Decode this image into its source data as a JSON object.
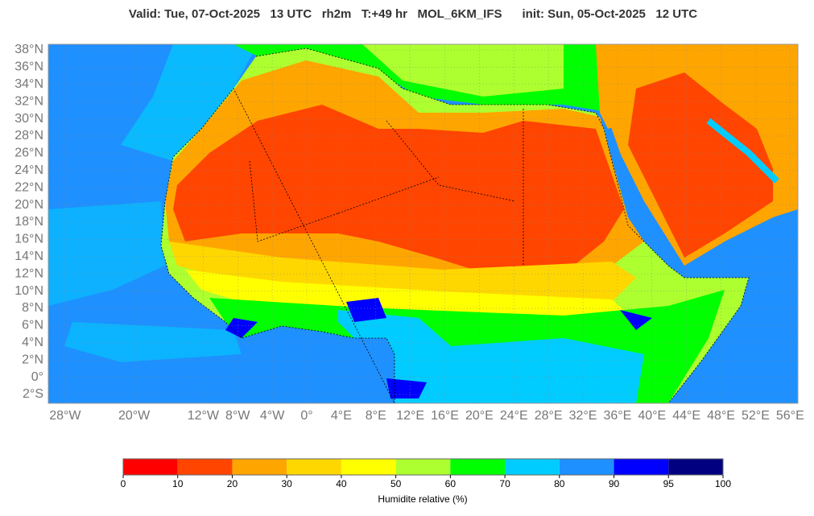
{
  "title": "Valid: Tue, 07-Oct-2025   13 UTC   rh2m   T:+49 hr   MOL_6KM_IFS      init: Sun, 05-Oct-2025   12 UTC",
  "map": {
    "lat_ticks": [
      {
        "value": 38,
        "label": "38°N"
      },
      {
        "value": 36,
        "label": "36°N"
      },
      {
        "value": 34,
        "label": "34°N"
      },
      {
        "value": 32,
        "label": "32°N"
      },
      {
        "value": 30,
        "label": "30°N"
      },
      {
        "value": 28,
        "label": "28°N"
      },
      {
        "value": 26,
        "label": "26°N"
      },
      {
        "value": 24,
        "label": "24°N"
      },
      {
        "value": 22,
        "label": "22°N"
      },
      {
        "value": 20,
        "label": "20°N"
      },
      {
        "value": 18,
        "label": "18°N"
      },
      {
        "value": 16,
        "label": "16°N"
      },
      {
        "value": 14,
        "label": "14°N"
      },
      {
        "value": 12,
        "label": "12°N"
      },
      {
        "value": 10,
        "label": "10°N"
      },
      {
        "value": 8,
        "label": "8°N"
      },
      {
        "value": 6,
        "label": "6°N"
      },
      {
        "value": 4,
        "label": "4°N"
      },
      {
        "value": 2,
        "label": "2°N"
      },
      {
        "value": 0,
        "label": "0°"
      },
      {
        "value": -2,
        "label": "2°S"
      }
    ],
    "lon_ticks": [
      {
        "value": -28,
        "label": "28°W"
      },
      {
        "value": -20,
        "label": "20°W"
      },
      {
        "value": -12,
        "label": "12°W"
      },
      {
        "value": -8,
        "label": "8°W"
      },
      {
        "value": -4,
        "label": "4°W"
      },
      {
        "value": 0,
        "label": "0°"
      },
      {
        "value": 4,
        "label": "4°E"
      },
      {
        "value": 8,
        "label": "8°E"
      },
      {
        "value": 12,
        "label": "12°E"
      },
      {
        "value": 16,
        "label": "16°E"
      },
      {
        "value": 20,
        "label": "20°E"
      },
      {
        "value": 24,
        "label": "24°E"
      },
      {
        "value": 28,
        "label": "28°E"
      },
      {
        "value": 32,
        "label": "32°E"
      },
      {
        "value": 36,
        "label": "36°E"
      },
      {
        "value": 40,
        "label": "40°E"
      },
      {
        "value": 44,
        "label": "44°E"
      },
      {
        "value": 48,
        "label": "48°E"
      },
      {
        "value": 52,
        "label": "52°E"
      },
      {
        "value": 56,
        "label": "56°E"
      }
    ]
  },
  "colorbar": {
    "ticks": [
      0,
      10,
      20,
      30,
      40,
      50,
      60,
      70,
      80,
      90,
      95,
      100
    ],
    "colors": [
      "#ff0000",
      "#ff4500",
      "#ffa500",
      "#ffd700",
      "#ffff00",
      "#adff2f",
      "#00ff00",
      "#00ccff",
      "#1e90ff",
      "#0000ff",
      "#000080"
    ],
    "label": "Humidite relative (%)"
  }
}
